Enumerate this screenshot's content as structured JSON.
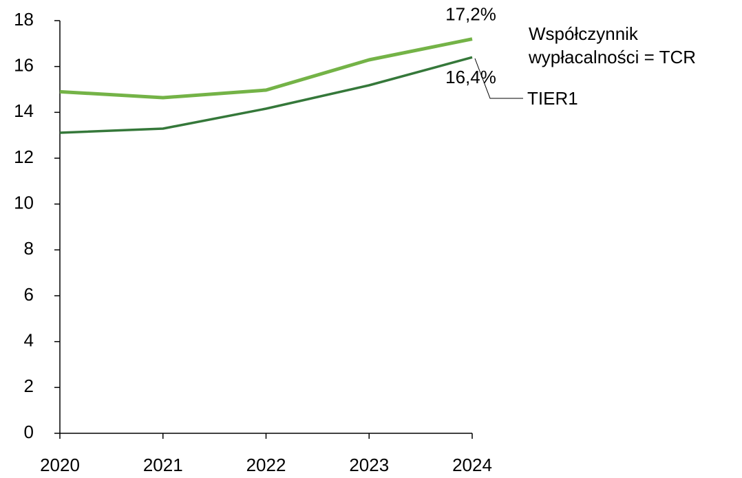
{
  "chart_data": {
    "type": "line",
    "categories": [
      "2020",
      "2021",
      "2022",
      "2023",
      "2024"
    ],
    "series": [
      {
        "name": "Współczynnik wypłacalności = TCR",
        "color": "#74b347",
        "values": [
          14.9,
          14.64,
          14.97,
          16.29,
          17.2
        ],
        "value_labels": [
          null,
          null,
          null,
          null,
          "17,2%"
        ]
      },
      {
        "name": "TIER1",
        "color": "#35783a",
        "values": [
          13.11,
          13.29,
          14.16,
          15.18,
          16.4
        ],
        "value_labels": [
          null,
          null,
          null,
          null,
          "16,4%"
        ]
      }
    ],
    "ylim": [
      0,
      18
    ],
    "yticks": [
      0,
      2,
      4,
      6,
      8,
      10,
      12,
      14,
      16,
      18
    ],
    "grid": false
  }
}
